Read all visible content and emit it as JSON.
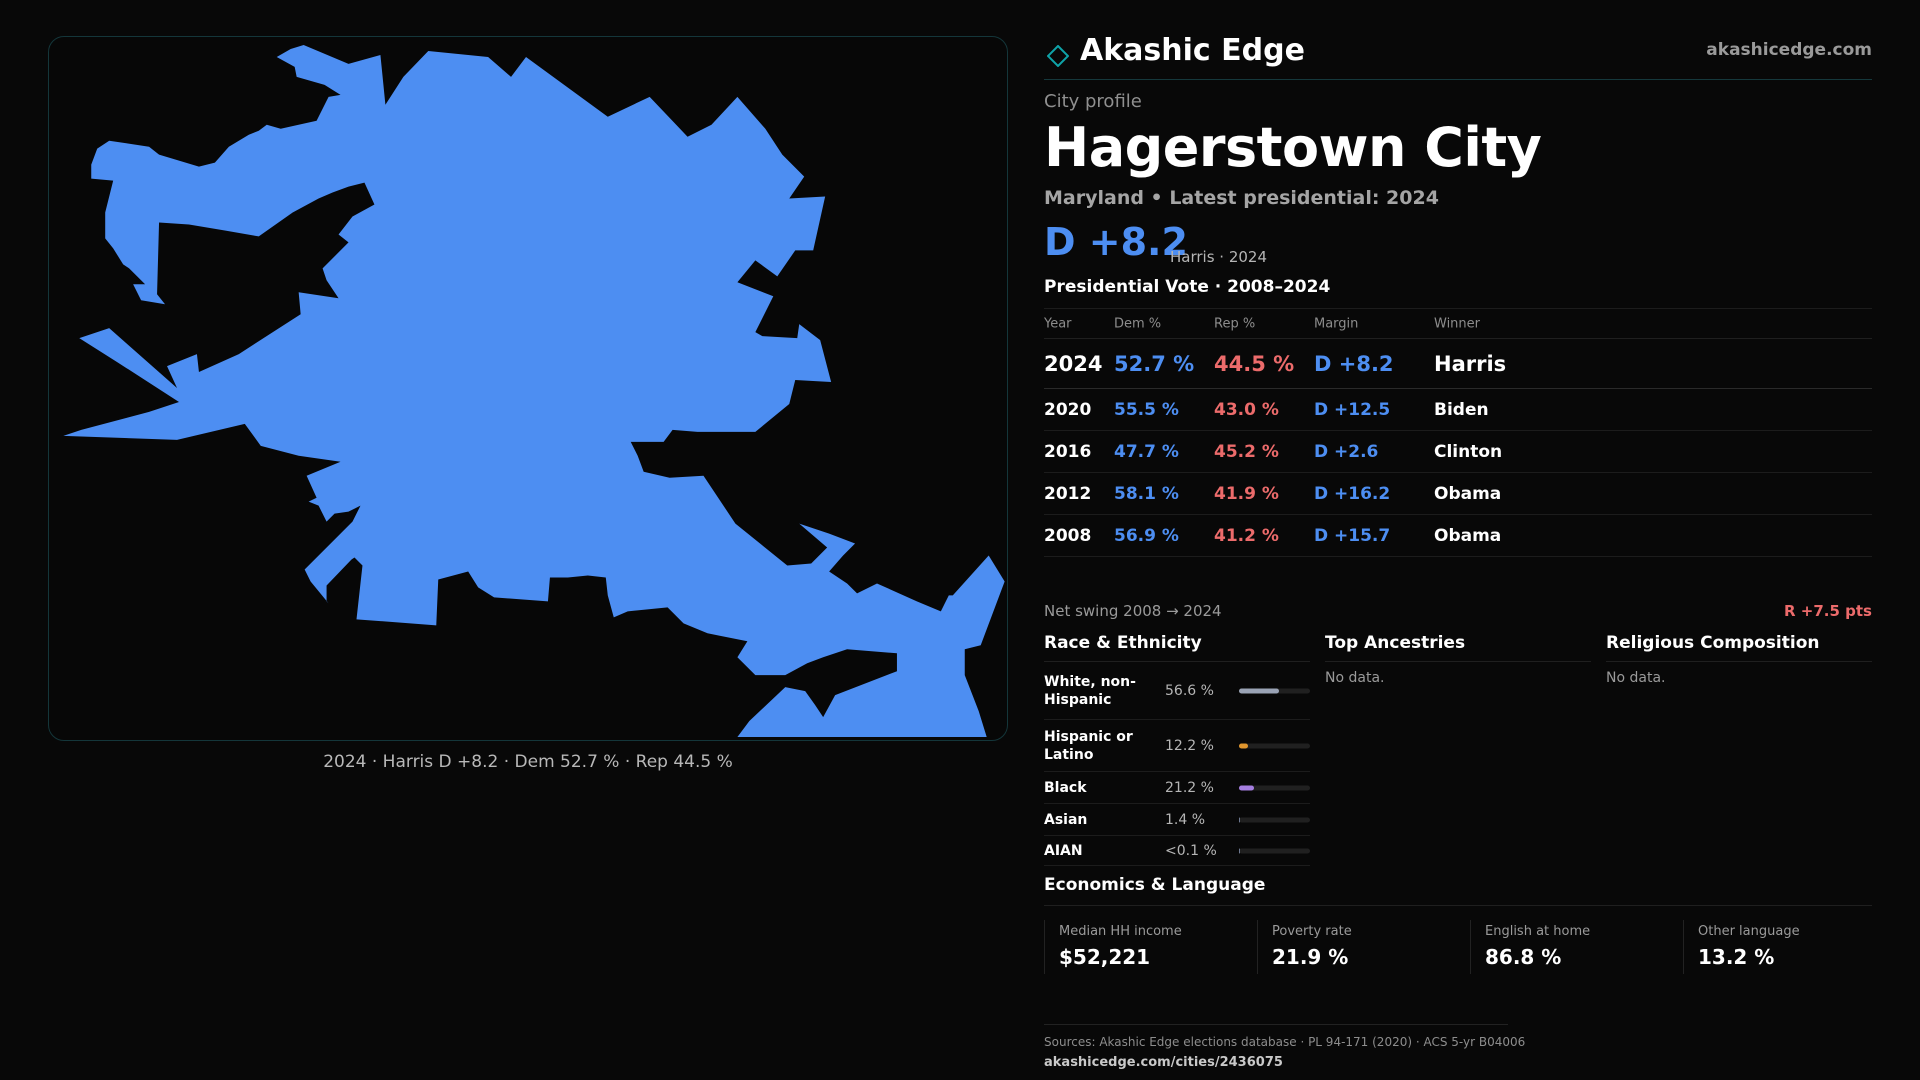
{
  "map": {
    "caption": "2024 · Harris D +8.2 · Dem 52.7 % · Rep 44.5 %",
    "fill_color": "#4d8ef2"
  },
  "brand": {
    "icon": "diamond-icon",
    "name": "Akashic Edge",
    "site": "akashicedge.com"
  },
  "profile": {
    "kicker": "City profile",
    "city": "Hagerstown City",
    "subline": "Maryland • Latest presidential: 2024",
    "margin": "D +8.2",
    "margin_sub": "Harris · 2024"
  },
  "vote": {
    "heading": "Presidential Vote · 2008–2024",
    "columns": [
      "Year",
      "Dem %",
      "Rep %",
      "Margin",
      "Winner"
    ],
    "rows": [
      {
        "year": "2024",
        "dem": "52.7 %",
        "rep": "44.5 %",
        "margin": "D +8.2",
        "winner": "Harris"
      },
      {
        "year": "2020",
        "dem": "55.5 %",
        "rep": "43.0 %",
        "margin": "D +12.5",
        "winner": "Biden"
      },
      {
        "year": "2016",
        "dem": "47.7 %",
        "rep": "45.2 %",
        "margin": "D +2.6",
        "winner": "Clinton"
      },
      {
        "year": "2012",
        "dem": "58.1 %",
        "rep": "41.9 %",
        "margin": "D +16.2",
        "winner": "Obama"
      },
      {
        "year": "2008",
        "dem": "56.9 %",
        "rep": "41.2 %",
        "margin": "D +15.7",
        "winner": "Obama"
      }
    ],
    "swing_label": "Net swing 2008 → 2024",
    "swing_value": "R +7.5 pts"
  },
  "race": {
    "heading": "Race & Ethnicity",
    "items": [
      {
        "label": "White, non-Hispanic",
        "pct": "56.6 %",
        "value": 56.6,
        "color": "#9aa3b5"
      },
      {
        "label": "Hispanic or Latino",
        "pct": "12.2 %",
        "value": 12.2,
        "color": "#e0962e"
      },
      {
        "label": "Black",
        "pct": "21.2 %",
        "value": 21.2,
        "color": "#a57ee0"
      },
      {
        "label": "Asian",
        "pct": "1.4 %",
        "value": 1.4,
        "color": "#6e7890"
      },
      {
        "label": "AIAN",
        "pct": "<0.1 %",
        "value": 0.05,
        "color": "#6e7890"
      }
    ]
  },
  "ancestries": {
    "heading": "Top Ancestries",
    "empty": "No data."
  },
  "religion": {
    "heading": "Religious Composition",
    "empty": "No data."
  },
  "economics": {
    "heading": "Economics & Language",
    "cells": [
      {
        "label": "Median HH income",
        "value": "$52,221"
      },
      {
        "label": "Poverty rate",
        "value": "21.9 %"
      },
      {
        "label": "English at home",
        "value": "86.8 %"
      },
      {
        "label": "Other language",
        "value": "13.2 %"
      }
    ]
  },
  "footer": {
    "sources": "Sources: Akashic Edge elections database · PL 94-171 (2020) · ACS 5-yr B04006",
    "url": "akashicedge.com/cities/2436075"
  }
}
